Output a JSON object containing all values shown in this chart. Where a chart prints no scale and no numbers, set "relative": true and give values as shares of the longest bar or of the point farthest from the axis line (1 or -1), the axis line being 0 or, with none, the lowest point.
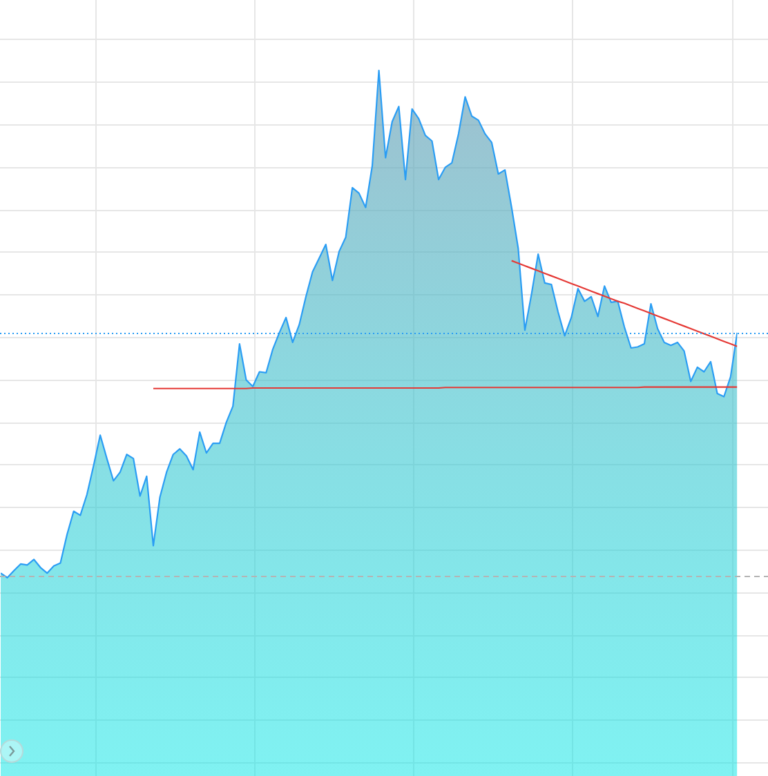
{
  "chart_data": {
    "type": "area",
    "relative": true,
    "grid": true,
    "categories": [
      null,
      null,
      null,
      null,
      null,
      null,
      null,
      null,
      null,
      null,
      null,
      null,
      null,
      null,
      null,
      null,
      null,
      null,
      null,
      null,
      null,
      null,
      null,
      null,
      null,
      null,
      null,
      null,
      null,
      null,
      null,
      null,
      null,
      null,
      null,
      null,
      null,
      null,
      null,
      null,
      null,
      null,
      null,
      null,
      null,
      null,
      null,
      null,
      null,
      null,
      null,
      null,
      null,
      null,
      null,
      null,
      null,
      null,
      null,
      null,
      null,
      null,
      null,
      null,
      null,
      null,
      null,
      null,
      null,
      null,
      null,
      null,
      null,
      null,
      null,
      null,
      null,
      null,
      null,
      null,
      null,
      null,
      null,
      null,
      null,
      null,
      null,
      null,
      null,
      null,
      null,
      null,
      null,
      null,
      null,
      null,
      null,
      null,
      null,
      null,
      null,
      null,
      null,
      null,
      null,
      null,
      null,
      null,
      null,
      null,
      null,
      null
    ],
    "series": [
      {
        "color": "#2a9df4",
        "values": [
          0.009,
          0,
          0.014,
          0.027,
          0.025,
          0.036,
          0.02,
          0.009,
          0.023,
          0.029,
          0.085,
          0.131,
          0.123,
          0.164,
          0.221,
          0.281,
          0.235,
          0.191,
          0.208,
          0.243,
          0.235,
          0.161,
          0.2,
          0.063,
          0.159,
          0.208,
          0.243,
          0.254,
          0.24,
          0.213,
          0.287,
          0.246,
          0.265,
          0.265,
          0.306,
          0.338,
          0.461,
          0.39,
          0.377,
          0.406,
          0.404,
          0.45,
          0.483,
          0.513,
          0.464,
          0.499,
          0.554,
          0.603,
          0.63,
          0.657,
          0.586,
          0.643,
          0.671,
          0.769,
          0.758,
          0.73,
          0.812,
          1,
          0.828,
          0.899,
          0.929,
          0.785,
          0.924,
          0.905,
          0.872,
          0.861,
          0.785,
          0.809,
          0.818,
          0.875,
          0.948,
          0.91,
          0.902,
          0.875,
          0.858,
          0.796,
          0.804,
          0.73,
          0.649,
          0.488,
          0.559,
          0.638,
          0.581,
          0.578,
          0.524,
          0.477,
          0.513,
          0.57,
          0.545,
          0.554,
          0.515,
          0.575,
          0.543,
          0.545,
          0.494,
          0.453,
          0.455,
          0.461,
          0.54,
          0.491,
          0.464,
          0.458,
          0.464,
          0.447,
          0.387,
          0.415,
          0.406,
          0.426,
          0.363,
          0.357,
          0.396,
          0.483
        ]
      },
      {
        "type": "line",
        "color": "#e53935",
        "values": [
          null,
          null,
          null,
          null,
          null,
          null,
          null,
          null,
          null,
          null,
          null,
          null,
          null,
          null,
          null,
          null,
          null,
          null,
          null,
          null,
          null,
          null,
          null,
          0.373,
          0.373,
          0.373,
          0.373,
          0.373,
          0.373,
          0.373,
          0.373,
          0.373,
          0.373,
          0.373,
          0.373,
          0.373,
          0.373,
          0.373,
          0.374,
          0.374,
          0.374,
          0.374,
          0.374,
          0.374,
          0.374,
          0.374,
          0.374,
          0.374,
          0.374,
          0.374,
          0.374,
          0.374,
          0.374,
          0.374,
          0.374,
          0.374,
          0.374,
          0.374,
          0.374,
          0.374,
          0.374,
          0.374,
          0.374,
          0.374,
          0.374,
          0.374,
          0.374,
          0.375,
          0.375,
          0.375,
          0.375,
          0.375,
          0.375,
          0.375,
          0.375,
          0.375,
          0.375,
          0.375,
          0.375,
          0.375,
          0.375,
          0.375,
          0.375,
          0.375,
          0.375,
          0.375,
          0.375,
          0.375,
          0.375,
          0.375,
          0.375,
          0.375,
          0.375,
          0.375,
          0.375,
          0.375,
          0.375,
          0.376,
          0.376,
          0.376,
          0.376,
          0.376,
          0.376,
          0.376,
          0.376,
          0.376,
          0.376,
          0.376,
          0.376,
          0.376,
          0.376,
          0.376
        ]
      },
      {
        "type": "line",
        "color": "#e53935",
        "values": [
          null,
          null,
          null,
          null,
          null,
          null,
          null,
          null,
          null,
          null,
          null,
          null,
          null,
          null,
          null,
          null,
          null,
          null,
          null,
          null,
          null,
          null,
          null,
          null,
          null,
          null,
          null,
          null,
          null,
          null,
          null,
          null,
          null,
          null,
          null,
          null,
          null,
          null,
          null,
          null,
          null,
          null,
          null,
          null,
          null,
          null,
          null,
          null,
          null,
          null,
          null,
          null,
          null,
          null,
          null,
          null,
          null,
          null,
          null,
          null,
          null,
          null,
          null,
          null,
          null,
          null,
          null,
          null,
          null,
          null,
          null,
          null,
          null,
          null,
          null,
          null,
          null,
          0.625,
          0.62,
          0.615,
          0.61,
          0.605,
          0.6,
          0.595,
          0.59,
          0.585,
          0.58,
          0.575,
          0.57,
          0.565,
          0.56,
          0.555,
          0.55,
          0.545,
          0.541,
          0.536,
          0.531,
          0.526,
          0.521,
          0.516,
          0.511,
          0.506,
          0.501,
          0.496,
          0.491,
          0.486,
          0.481,
          0.476,
          0.471,
          0.466,
          0.461,
          0.456
        ]
      }
    ],
    "ref_lines": [
      {
        "axis": "y",
        "value": 0.483,
        "color": "#2a9df4",
        "line_style": "dotted"
      },
      {
        "axis": "y",
        "value": 0.004,
        "color": "#b4b4b4",
        "line_style": "dashed"
      }
    ]
  }
}
